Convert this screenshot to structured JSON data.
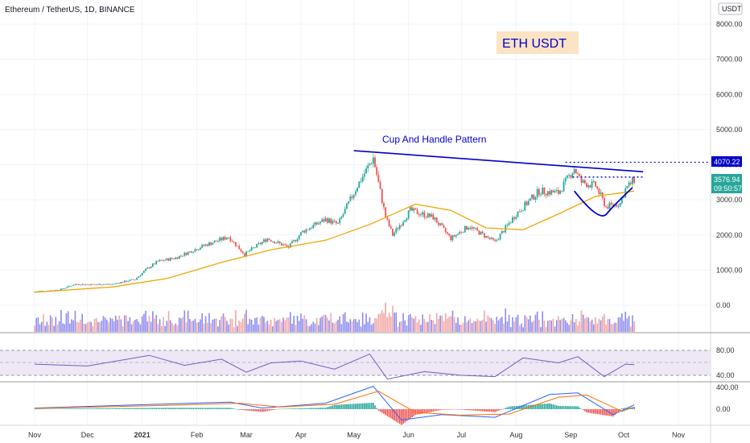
{
  "header": {
    "symbol_title": "Ethereum / TetherUS, 1D, BINANCE",
    "currency_badge": "USDT"
  },
  "annotations": {
    "title_box": "ETH USDT",
    "pattern_label": "Cup And Handle Pattern"
  },
  "price_labels": {
    "resistance": "4070.22",
    "last_price": "3576.94",
    "countdown": "09:50:57"
  },
  "colors": {
    "up": "#26a69a",
    "down": "#ef5350",
    "ma": "#f0a500",
    "trendline": "#0000cc",
    "title_bg": "#fbe3c3",
    "rsi_band": "#ede7f6",
    "rsi_line": "#7e57c2",
    "macd": "#2962ff",
    "signal": "#ff6d00",
    "vol_up": "#8c8cf0",
    "vol_down": "#f3a6a6"
  },
  "chart_data": {
    "type": "candlestick",
    "title": "Ethereum / TetherUS, 1D, BINANCE",
    "y_axis": {
      "ticks": [
        "8000.00",
        "7000.00",
        "6000.00",
        "5000.00",
        "4000.00",
        "3000.00",
        "2000.00",
        "1000.00",
        "0.00"
      ],
      "ylim": [
        -600,
        8200
      ]
    },
    "x_axis": {
      "ticks": [
        "Nov",
        "Dec",
        "2021",
        "Feb",
        "Mar",
        "Apr",
        "May",
        "Jun",
        "Jul",
        "Aug",
        "Sep",
        "Oct",
        "Nov"
      ]
    },
    "price_series": [
      {
        "date": "2020-11-01",
        "value": 390
      },
      {
        "date": "2020-11-15",
        "value": 440
      },
      {
        "date": "2020-11-24",
        "value": 600
      },
      {
        "date": "2020-12-01",
        "value": 590
      },
      {
        "date": "2020-12-15",
        "value": 600
      },
      {
        "date": "2020-12-28",
        "value": 740
      },
      {
        "date": "2021-01-04",
        "value": 1050
      },
      {
        "date": "2021-01-10",
        "value": 1250
      },
      {
        "date": "2021-01-20",
        "value": 1350
      },
      {
        "date": "2021-02-05",
        "value": 1700
      },
      {
        "date": "2021-02-19",
        "value": 1950
      },
      {
        "date": "2021-02-28",
        "value": 1450
      },
      {
        "date": "2021-03-13",
        "value": 1900
      },
      {
        "date": "2021-03-25",
        "value": 1650
      },
      {
        "date": "2021-04-02",
        "value": 2100
      },
      {
        "date": "2021-04-15",
        "value": 2450
      },
      {
        "date": "2021-04-22",
        "value": 2300
      },
      {
        "date": "2021-05-03",
        "value": 3400
      },
      {
        "date": "2021-05-12",
        "value": 4200
      },
      {
        "date": "2021-05-19",
        "value": 2500
      },
      {
        "date": "2021-05-23",
        "value": 2000
      },
      {
        "date": "2021-06-02",
        "value": 2700
      },
      {
        "date": "2021-06-15",
        "value": 2500
      },
      {
        "date": "2021-06-25",
        "value": 1900
      },
      {
        "date": "2021-07-05",
        "value": 2250
      },
      {
        "date": "2021-07-20",
        "value": 1800
      },
      {
        "date": "2021-08-01",
        "value": 2600
      },
      {
        "date": "2021-08-14",
        "value": 3250
      },
      {
        "date": "2021-08-25",
        "value": 3200
      },
      {
        "date": "2021-09-03",
        "value": 3900
      },
      {
        "date": "2021-09-07",
        "value": 3500
      },
      {
        "date": "2021-09-15",
        "value": 3400
      },
      {
        "date": "2021-09-21",
        "value": 2800
      },
      {
        "date": "2021-09-29",
        "value": 2900
      },
      {
        "date": "2021-10-02",
        "value": 3300
      },
      {
        "date": "2021-10-07",
        "value": 3577
      }
    ],
    "moving_average": [
      {
        "date": "2020-11-01",
        "value": 370
      },
      {
        "date": "2020-12-15",
        "value": 520
      },
      {
        "date": "2021-01-15",
        "value": 760
      },
      {
        "date": "2021-02-15",
        "value": 1220
      },
      {
        "date": "2021-03-15",
        "value": 1580
      },
      {
        "date": "2021-04-15",
        "value": 1850
      },
      {
        "date": "2021-05-10",
        "value": 2300
      },
      {
        "date": "2021-06-05",
        "value": 2880
      },
      {
        "date": "2021-06-25",
        "value": 2700
      },
      {
        "date": "2021-07-15",
        "value": 2200
      },
      {
        "date": "2021-08-05",
        "value": 2150
      },
      {
        "date": "2021-08-25",
        "value": 2600
      },
      {
        "date": "2021-09-15",
        "value": 3100
      },
      {
        "date": "2021-10-07",
        "value": 3250
      }
    ],
    "rsi": {
      "ticks": [
        "80.00",
        "40.00"
      ],
      "series": [
        {
          "date": "2020-11-01",
          "value": 58
        },
        {
          "date": "2020-12-01",
          "value": 55
        },
        {
          "date": "2021-01-05",
          "value": 72
        },
        {
          "date": "2021-01-25",
          "value": 56
        },
        {
          "date": "2021-02-15",
          "value": 66
        },
        {
          "date": "2021-03-01",
          "value": 45
        },
        {
          "date": "2021-03-15",
          "value": 60
        },
        {
          "date": "2021-04-01",
          "value": 63
        },
        {
          "date": "2021-04-20",
          "value": 50
        },
        {
          "date": "2021-05-10",
          "value": 74
        },
        {
          "date": "2021-05-20",
          "value": 34
        },
        {
          "date": "2021-06-10",
          "value": 46
        },
        {
          "date": "2021-07-01",
          "value": 40
        },
        {
          "date": "2021-07-20",
          "value": 38
        },
        {
          "date": "2021-08-05",
          "value": 68
        },
        {
          "date": "2021-08-25",
          "value": 60
        },
        {
          "date": "2021-09-05",
          "value": 70
        },
        {
          "date": "2021-09-20",
          "value": 38
        },
        {
          "date": "2021-10-02",
          "value": 58
        },
        {
          "date": "2021-10-07",
          "value": 57
        }
      ]
    },
    "macd": {
      "ticks": [
        "400.00",
        "0.00"
      ],
      "macd_series": [
        {
          "date": "2020-11-01",
          "value": 20
        },
        {
          "date": "2021-01-10",
          "value": 90
        },
        {
          "date": "2021-02-20",
          "value": 130
        },
        {
          "date": "2021-03-10",
          "value": 20
        },
        {
          "date": "2021-04-15",
          "value": 110
        },
        {
          "date": "2021-05-12",
          "value": 420
        },
        {
          "date": "2021-05-28",
          "value": -200
        },
        {
          "date": "2021-06-20",
          "value": -100
        },
        {
          "date": "2021-07-20",
          "value": -150
        },
        {
          "date": "2021-08-20",
          "value": 270
        },
        {
          "date": "2021-09-05",
          "value": 300
        },
        {
          "date": "2021-09-25",
          "value": -100
        },
        {
          "date": "2021-10-07",
          "value": 80
        }
      ],
      "signal_series": [
        {
          "date": "2020-11-01",
          "value": 15
        },
        {
          "date": "2021-01-15",
          "value": 70
        },
        {
          "date": "2021-02-25",
          "value": 110
        },
        {
          "date": "2021-03-20",
          "value": 40
        },
        {
          "date": "2021-04-20",
          "value": 90
        },
        {
          "date": "2021-05-15",
          "value": 330
        },
        {
          "date": "2021-06-05",
          "value": -60
        },
        {
          "date": "2021-06-30",
          "value": -110
        },
        {
          "date": "2021-07-28",
          "value": -90
        },
        {
          "date": "2021-08-25",
          "value": 220
        },
        {
          "date": "2021-09-10",
          "value": 260
        },
        {
          "date": "2021-09-30",
          "value": -40
        },
        {
          "date": "2021-10-07",
          "value": 40
        }
      ]
    },
    "trendline": [
      {
        "date": "2021-05-01",
        "value": 4400
      },
      {
        "date": "2021-10-12",
        "value": 3800
      }
    ],
    "handle_dotted_line": {
      "date_from": "2021-09-02",
      "date_to": "2021-10-12",
      "value": 3650
    },
    "resistance_dotted_line": {
      "date_from": "2021-08-29",
      "value": 4070.22
    }
  }
}
